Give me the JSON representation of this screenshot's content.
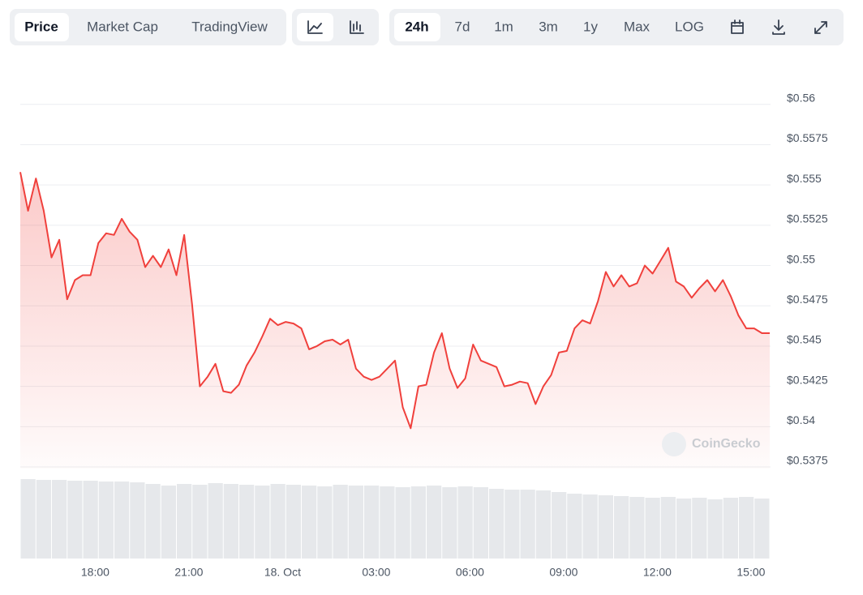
{
  "toolbar": {
    "tabs": [
      "Price",
      "Market Cap",
      "TradingView"
    ],
    "ranges": [
      "24h",
      "7d",
      "1m",
      "3m",
      "1y",
      "Max",
      "LOG"
    ]
  },
  "watermark": "CoinGecko",
  "chart_data": {
    "type": "line",
    "color": "#f0403c",
    "x": [
      15.6,
      15.85,
      16.1,
      16.35,
      16.6,
      16.85,
      17.1,
      17.35,
      17.6,
      17.85,
      18.1,
      18.35,
      18.6,
      18.85,
      19.1,
      19.35,
      19.6,
      19.85,
      20.1,
      20.35,
      20.6,
      20.85,
      21.1,
      21.35,
      21.6,
      21.85,
      22.1,
      22.35,
      22.6,
      22.85,
      23.1,
      23.35,
      23.6,
      23.85,
      24.1,
      24.35,
      24.6,
      24.85,
      25.1,
      25.35,
      25.6,
      25.85,
      26.1,
      26.35,
      26.6,
      26.85,
      27.1,
      27.35,
      27.6,
      27.85,
      28.1,
      28.35,
      28.6,
      28.85,
      29.1,
      29.35,
      29.6,
      29.85,
      30.1,
      30.35,
      30.6,
      30.85,
      31.1,
      31.35,
      31.6,
      31.85,
      32.1,
      32.35,
      32.6,
      32.85,
      33.1,
      33.35,
      33.6,
      33.85,
      34.1,
      34.35,
      34.6,
      34.85,
      35.1,
      35.35,
      35.6,
      35.85,
      36.1,
      36.35,
      36.6,
      36.85,
      37.1,
      37.35,
      37.6,
      37.85,
      38.1,
      38.35,
      38.6,
      38.85,
      39.1,
      39.35,
      39.6
    ],
    "values": [
      0.5558,
      0.5534,
      0.5554,
      0.5534,
      0.5505,
      0.5516,
      0.5479,
      0.5491,
      0.5494,
      0.5494,
      0.5514,
      0.552,
      0.5519,
      0.5529,
      0.5521,
      0.5516,
      0.5499,
      0.5506,
      0.5499,
      0.551,
      0.5494,
      0.5519,
      0.5476,
      0.5425,
      0.5431,
      0.5439,
      0.5422,
      0.5421,
      0.5426,
      0.5438,
      0.5446,
      0.5456,
      0.5467,
      0.5463,
      0.5465,
      0.5464,
      0.5461,
      0.5448,
      0.545,
      0.5453,
      0.5454,
      0.5451,
      0.5454,
      0.5436,
      0.5431,
      0.5429,
      0.5431,
      0.5436,
      0.5441,
      0.5412,
      0.5399,
      0.5425,
      0.5426,
      0.5446,
      0.5458,
      0.5436,
      0.5424,
      0.543,
      0.5451,
      0.5441,
      0.5439,
      0.5437,
      0.5425,
      0.5426,
      0.5428,
      0.5427,
      0.5414,
      0.5425,
      0.5432,
      0.5446,
      0.5447,
      0.5461,
      0.5466,
      0.5464,
      0.5478,
      0.5496,
      0.5487,
      0.5494,
      0.5487,
      0.5489,
      0.55,
      0.5495,
      0.5503,
      0.5511,
      0.549,
      0.5487,
      0.548,
      0.5486,
      0.5491,
      0.5484,
      0.5491,
      0.5481,
      0.5469,
      0.5461,
      0.5461,
      0.5458,
      0.5458
    ],
    "xlim": [
      15.6,
      39.6
    ],
    "xticks": [
      {
        "value": 18,
        "label": "18:00"
      },
      {
        "value": 21,
        "label": "21:00"
      },
      {
        "value": 24,
        "label": "18. Oct"
      },
      {
        "value": 27,
        "label": "03:00"
      },
      {
        "value": 30,
        "label": "06:00"
      },
      {
        "value": 33,
        "label": "09:00"
      },
      {
        "value": 36,
        "label": "12:00"
      },
      {
        "value": 39,
        "label": "15:00"
      }
    ],
    "ylim": [
      0.5374,
      0.5616
    ],
    "yticks": [
      {
        "value": 0.56,
        "label": "$0.56"
      },
      {
        "value": 0.5575,
        "label": "$0.5575"
      },
      {
        "value": 0.555,
        "label": "$0.555"
      },
      {
        "value": 0.5525,
        "label": "$0.5525"
      },
      {
        "value": 0.55,
        "label": "$0.55"
      },
      {
        "value": 0.5475,
        "label": "$0.5475"
      },
      {
        "value": 0.545,
        "label": "$0.545"
      },
      {
        "value": 0.5425,
        "label": "$0.5425"
      },
      {
        "value": 0.54,
        "label": "$0.54"
      },
      {
        "value": 0.5375,
        "label": "$0.5375"
      }
    ],
    "grid": true,
    "volume": {
      "color": "#e6e8eb",
      "ylim": [
        0,
        100
      ],
      "values": [
        98,
        97,
        97,
        96,
        96,
        95,
        95,
        94,
        92,
        90,
        92,
        91,
        93,
        92,
        91,
        90,
        92,
        91,
        90,
        89,
        91,
        90,
        90,
        89,
        88,
        89,
        90,
        88,
        89,
        88,
        86,
        85,
        85,
        84,
        82,
        80,
        79,
        78,
        77,
        76,
        75,
        76,
        74,
        75,
        73,
        75,
        76,
        74
      ]
    }
  }
}
